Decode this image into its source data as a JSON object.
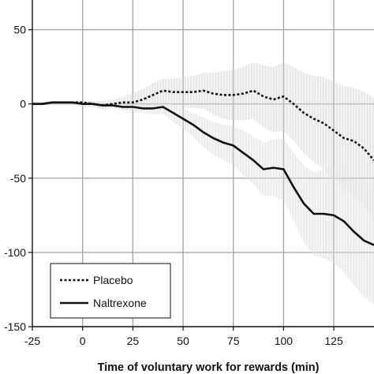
{
  "chart_data": {
    "type": "line",
    "title": "",
    "xlabel": "Time of voluntary work for rewards (min)",
    "ylabel": "",
    "xlim": [
      -25,
      145
    ],
    "ylim": [
      -150,
      70
    ],
    "xticks": [
      -25,
      0,
      25,
      50,
      75,
      100,
      125
    ],
    "yticks": [
      -150,
      -100,
      -50,
      0,
      50
    ],
    "xtick_labels": [
      "-25",
      "0",
      "25",
      "50",
      "75",
      "100",
      "125"
    ],
    "ytick_labels": [
      "-150",
      "-100",
      "-50",
      "0",
      "50"
    ],
    "grid": true,
    "legend_position": "bottom-left",
    "series": [
      {
        "name": "Placebo",
        "style": "dotted",
        "color": "#111111",
        "band_color": "#d6d6d6",
        "x": [
          -25,
          -20,
          -15,
          -10,
          -5,
          0,
          5,
          10,
          15,
          20,
          25,
          30,
          35,
          40,
          45,
          50,
          55,
          60,
          65,
          70,
          75,
          80,
          85,
          90,
          95,
          100,
          105,
          110,
          115,
          120,
          125,
          130,
          135,
          140,
          145
        ],
        "y": [
          0,
          0,
          1,
          1,
          1,
          1,
          0,
          -1,
          0,
          1,
          1,
          3,
          6,
          9,
          8,
          8,
          8,
          9,
          7,
          6,
          6,
          7,
          9,
          5,
          3,
          5,
          0,
          -6,
          -10,
          -13,
          -18,
          -23,
          -25,
          -30,
          -38
        ],
        "band_upper": [
          1,
          1,
          2,
          2,
          2,
          2,
          2,
          2,
          3,
          5,
          7,
          10,
          14,
          17,
          17,
          18,
          19,
          21,
          21,
          22,
          23,
          25,
          28,
          26,
          25,
          28,
          25,
          21,
          19,
          18,
          15,
          12,
          11,
          8,
          4
        ],
        "band_lower": [
          -1,
          -1,
          0,
          0,
          0,
          0,
          -2,
          -4,
          -3,
          -3,
          -5,
          -4,
          -2,
          1,
          -1,
          -2,
          -3,
          -3,
          -7,
          -10,
          -11,
          -11,
          -10,
          -16,
          -19,
          -18,
          -25,
          -33,
          -39,
          -44,
          -51,
          -58,
          -61,
          -68,
          -80
        ]
      },
      {
        "name": "Naltrexone",
        "style": "solid",
        "color": "#111111",
        "band_color": "#dcdcdc",
        "x": [
          -25,
          -20,
          -15,
          -10,
          -5,
          0,
          5,
          10,
          15,
          20,
          25,
          30,
          35,
          40,
          45,
          50,
          55,
          60,
          65,
          70,
          75,
          80,
          85,
          90,
          95,
          100,
          105,
          110,
          115,
          120,
          125,
          130,
          135,
          140,
          145
        ],
        "y": [
          0,
          0,
          1,
          1,
          1,
          0,
          0,
          -1,
          -1,
          -2,
          -2,
          -3,
          -3,
          -2,
          -6,
          -10,
          -14,
          -19,
          -23,
          -26,
          -28,
          -33,
          -38,
          -44,
          -43,
          -44,
          -56,
          -67,
          -74,
          -74,
          -75,
          -79,
          -86,
          -92,
          -95
        ],
        "band_upper": [
          1,
          1,
          2,
          2,
          2,
          2,
          2,
          1,
          1,
          0,
          0,
          0,
          1,
          3,
          0,
          -3,
          -6,
          -9,
          -12,
          -14,
          -15,
          -18,
          -22,
          -26,
          -24,
          -23,
          -33,
          -41,
          -46,
          -44,
          -43,
          -45,
          -50,
          -54,
          -55
        ],
        "band_lower": [
          -1,
          -1,
          0,
          0,
          0,
          -2,
          -2,
          -3,
          -3,
          -4,
          -5,
          -6,
          -7,
          -7,
          -12,
          -17,
          -22,
          -29,
          -34,
          -38,
          -41,
          -48,
          -54,
          -62,
          -62,
          -65,
          -79,
          -93,
          -102,
          -104,
          -107,
          -113,
          -122,
          -130,
          -135
        ]
      }
    ]
  },
  "legend": {
    "items": [
      {
        "label": "Placebo",
        "style": "dotted"
      },
      {
        "label": "Naltrexone",
        "style": "solid"
      }
    ]
  }
}
